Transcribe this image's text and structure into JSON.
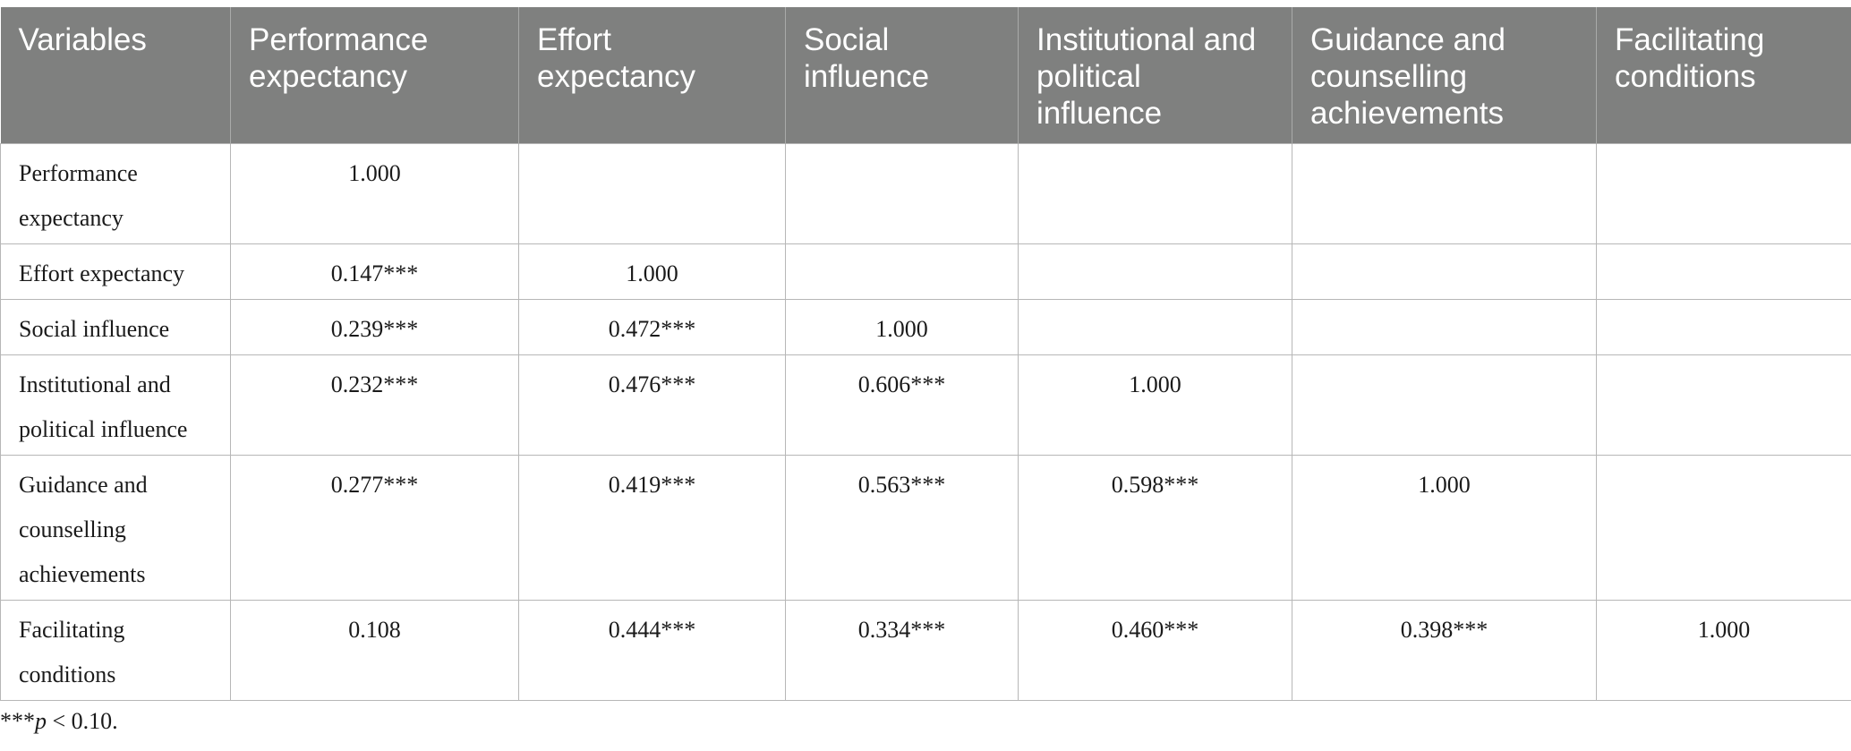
{
  "table": {
    "headers": [
      "Variables",
      "Performance expectancy",
      "Effort expectancy",
      "Social influence",
      "Institutional and political influence",
      "Guidance and counselling achievements",
      "Facilitating conditions"
    ],
    "rows": [
      [
        "Performance expectancy",
        "1.000",
        "",
        "",
        "",
        "",
        ""
      ],
      [
        "Effort expectancy",
        "0.147***",
        "1.000",
        "",
        "",
        "",
        ""
      ],
      [
        "Social influence",
        "0.239***",
        "0.472***",
        "1.000",
        "",
        "",
        ""
      ],
      [
        "Institutional and political influence",
        "0.232***",
        "0.476***",
        "0.606***",
        "1.000",
        "",
        ""
      ],
      [
        "Guidance and counselling achievements",
        "0.277***",
        "0.419***",
        "0.563***",
        "0.598***",
        "1.000",
        ""
      ],
      [
        "Facilitating conditions",
        "0.108",
        "0.444***",
        "0.334***",
        "0.460***",
        "0.398***",
        "1.000"
      ]
    ]
  },
  "footnote": {
    "stars": "***",
    "p": "p",
    "rest": " < 0.10."
  }
}
